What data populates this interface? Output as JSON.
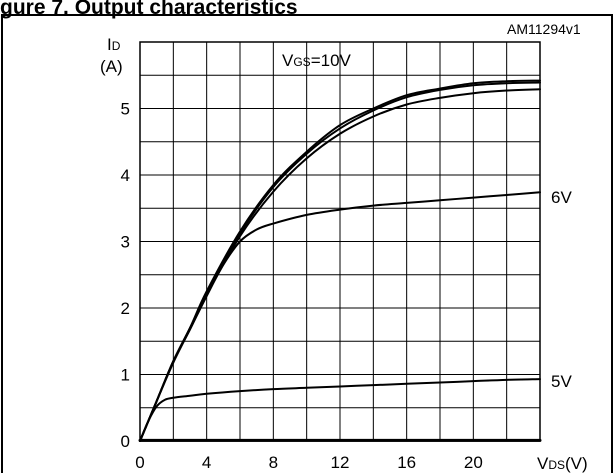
{
  "figure": {
    "heading": "gure 7. Output characteristics",
    "reference_code": "AM11294v1"
  },
  "chart_data": {
    "type": "line",
    "title": "",
    "ylabel": {
      "symbol": "I",
      "subscript": "D",
      "unit": "(A)"
    },
    "xlabel": {
      "symbol": "V",
      "subscript": "DS",
      "unit": "(V)"
    },
    "xlim": [
      0,
      24
    ],
    "ylim": [
      0,
      6
    ],
    "x_tick_labels": [
      "0",
      "4",
      "8",
      "12",
      "16",
      "20"
    ],
    "y_tick_labels": [
      "0",
      "1",
      "2",
      "3",
      "4",
      "5"
    ],
    "grid": true,
    "curve_label": {
      "prefix": "V",
      "subscript": "GS",
      "suffix": "=10V"
    },
    "series": [
      {
        "name": "",
        "x": [
          0,
          1,
          2,
          3,
          4,
          6,
          8,
          10,
          12,
          14,
          16,
          18,
          20,
          22,
          24
        ],
        "y": [
          0,
          0.6,
          1.2,
          1.7,
          2.25,
          3.15,
          3.85,
          4.35,
          4.75,
          5.0,
          5.2,
          5.3,
          5.38,
          5.41,
          5.42
        ]
      },
      {
        "name": "",
        "x": [
          0,
          1,
          2,
          3,
          4,
          6,
          8,
          10,
          12,
          14,
          16,
          18,
          20,
          22,
          24
        ],
        "y": [
          0,
          0.6,
          1.2,
          1.7,
          2.22,
          3.12,
          3.82,
          4.32,
          4.7,
          4.97,
          5.17,
          5.28,
          5.35,
          5.38,
          5.39
        ]
      },
      {
        "name": "",
        "x": [
          0,
          1,
          2,
          3,
          4,
          6,
          8,
          10,
          12,
          14,
          16,
          18,
          20,
          22,
          24
        ],
        "y": [
          0,
          0.6,
          1.2,
          1.68,
          2.2,
          3.08,
          3.75,
          4.25,
          4.62,
          4.88,
          5.06,
          5.16,
          5.23,
          5.27,
          5.29
        ]
      },
      {
        "name": "6V",
        "x": [
          0,
          1,
          2,
          3,
          4,
          5,
          6,
          7,
          8,
          10,
          12,
          14,
          16,
          18,
          20,
          22,
          24
        ],
        "y": [
          0,
          0.6,
          1.18,
          1.68,
          2.18,
          2.65,
          3.0,
          3.18,
          3.27,
          3.4,
          3.48,
          3.54,
          3.58,
          3.62,
          3.66,
          3.7,
          3.74
        ]
      },
      {
        "name": "5V",
        "x": [
          0,
          0.5,
          1,
          1.5,
          2,
          3,
          4,
          6,
          8,
          10,
          12,
          14,
          16,
          18,
          20,
          22,
          24
        ],
        "y": [
          0,
          0.3,
          0.52,
          0.62,
          0.65,
          0.68,
          0.71,
          0.75,
          0.78,
          0.8,
          0.82,
          0.84,
          0.86,
          0.88,
          0.9,
          0.92,
          0.93
        ]
      },
      {
        "name": "",
        "x": [
          0,
          4,
          8,
          12,
          16,
          20,
          24
        ],
        "y": [
          0.01,
          0.01,
          0.01,
          0.01,
          0.01,
          0.01,
          0.01
        ]
      }
    ]
  }
}
